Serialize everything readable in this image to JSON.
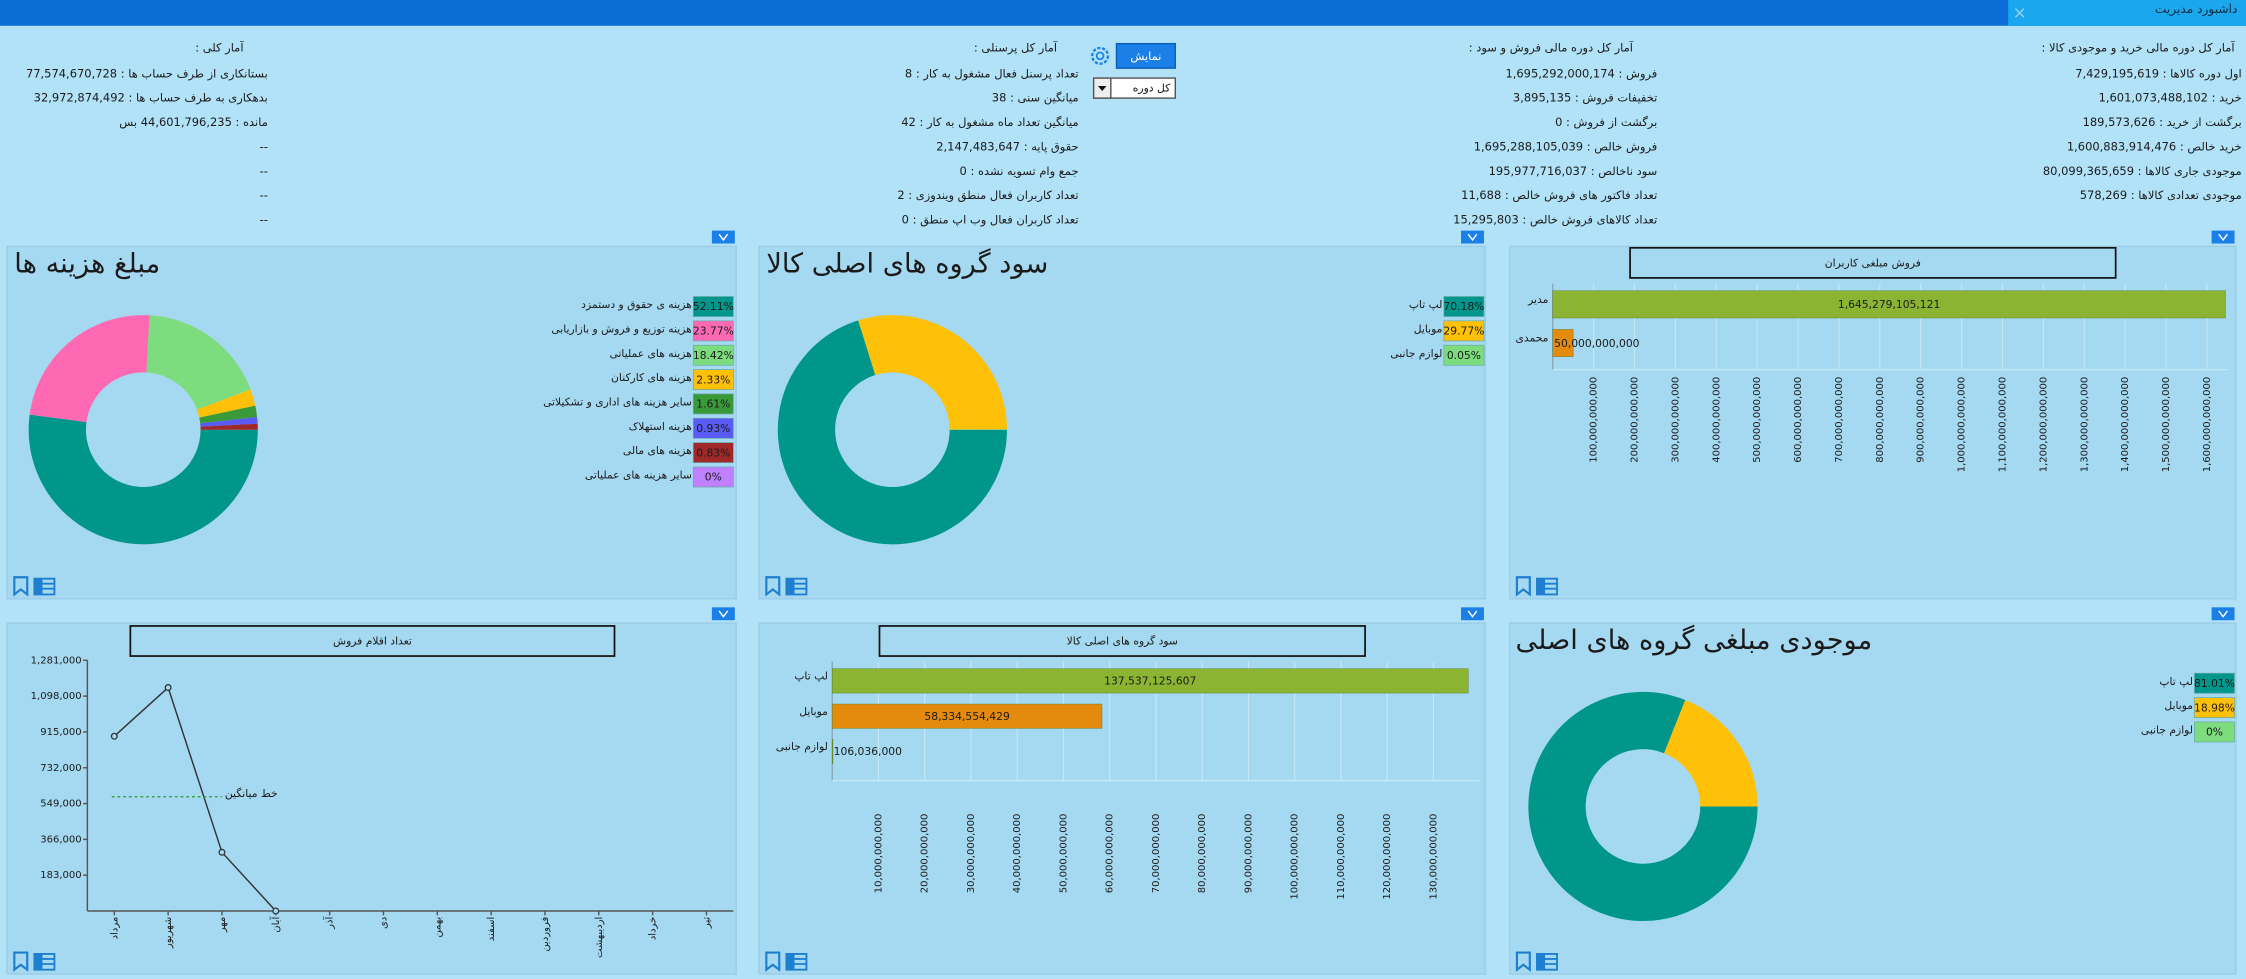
{
  "header": {
    "title": "داشبورد مدیریت"
  },
  "controls": {
    "show_button": "نمایش",
    "period": "کل دوره"
  },
  "stats": [
    {
      "title": "آمار کل دوره مالی خرید و موجودی کالا :",
      "items": [
        "اول دوره کالاها : 7,429,195,619",
        "خرید : 1,601,073,488,102",
        "برگشت از خرید : 189,573,626",
        "خرید خالص : 1,600,883,914,476",
        "موجودی جاری کالاها : 80,099,365,659",
        "موجودی تعدادی کالاها : 578,269"
      ]
    },
    {
      "title": "آمار کل دوره مالی فروش و سود :",
      "items": [
        "فروش : 1,695,292,000,174",
        "تخفیفات فروش : 3,895,135",
        "برگشت از فروش : 0",
        "فروش خالص : 1,695,288,105,039",
        "سود ناخالص : 195,977,716,037",
        "تعداد فاکتور های فروش خالص : 11,688",
        "تعداد کالاهای فروش خالص : 15,295,803"
      ]
    },
    {
      "title": "آمار کل پرسنلی :",
      "items": [
        "تعداد پرسنل فعال مشغول به کار : 8",
        "میانگین سنی : 38",
        "میانگین تعداد ماه مشغول به کار : 42",
        "حقوق پایه : 2,147,483,647",
        "جمع وام تسویه نشده : 0",
        "تعداد کاربران فعال منطق ویندوزی : 2",
        "تعداد کاربران فعال وب اپ منطق : 0"
      ]
    },
    {
      "title": "آمار کلی :",
      "items": [
        "بستانکاری از طرف حساب ها : 77,574,670,728",
        "بدهکاری به طرف حساب ها : 32,972,874,492",
        "مانده : 44,601,796,235 بس",
        "--",
        "--",
        "--",
        "--"
      ]
    }
  ],
  "chart_data": [
    {
      "type": "pie",
      "title": "مبلغ هزینه ها",
      "donut": true,
      "categories": [
        "هزینه ی حقوق و دستمزد",
        "هزینه توزیع و فروش و بازاریابی",
        "هزینه های عملیاتی",
        "هزینه های کارکنان",
        "سایر هزینه های اداری و تشکیلاتی",
        "هزینه استهلاک",
        "هزینه های مالی",
        "سایر هزینه های عملیاتی"
      ],
      "values": [
        52.11,
        23.77,
        18.42,
        2.33,
        1.61,
        0.93,
        0.83,
        0
      ],
      "value_labels": [
        "52.11%",
        "23.77%",
        "18.42%",
        "2.33%",
        "1.61%",
        "0.93%",
        "0.83%",
        "0%"
      ],
      "colors": [
        "#00968a",
        "#ff69b4",
        "#7ddc7d",
        "#ffc107",
        "#3a9a3a",
        "#5a5af5",
        "#a02828",
        "#c080ff"
      ]
    },
    {
      "type": "pie",
      "title": "سود گروه های اصلی کالا",
      "donut": true,
      "categories": [
        "لپ تاپ",
        "موبایل",
        "لوازم جانبی"
      ],
      "values": [
        70.18,
        29.77,
        0.05
      ],
      "value_labels": [
        "70.18%",
        "29.77%",
        "0.05%"
      ],
      "colors": [
        "#00968a",
        "#ffc107",
        "#7ddc7d"
      ]
    },
    {
      "type": "bar",
      "orientation": "horizontal",
      "title": "فروش مبلغی کاربران",
      "categories": [
        "مدیر",
        "محمدی"
      ],
      "values": [
        1645279105121,
        50000000000
      ],
      "value_labels": [
        "1,645,279,105,121",
        "50,000,000,000"
      ],
      "colors": [
        "#8ab431",
        "#e48a0c"
      ],
      "grid": true,
      "xlim": [
        0,
        1650000000000
      ],
      "xticks": [
        {
          "value": 100000000000,
          "label": "100,000,000,000"
        },
        {
          "value": 200000000000,
          "label": "200,000,000,000"
        },
        {
          "value": 300000000000,
          "label": "300,000,000,000"
        },
        {
          "value": 400000000000,
          "label": "400,000,000,000"
        },
        {
          "value": 500000000000,
          "label": "500,000,000,000"
        },
        {
          "value": 600000000000,
          "label": "600,000,000,000"
        },
        {
          "value": 700000000000,
          "label": "700,000,000,000"
        },
        {
          "value": 800000000000,
          "label": "800,000,000,000"
        },
        {
          "value": 900000000000,
          "label": "900,000,000,000"
        },
        {
          "value": 1000000000000,
          "label": "1,000,000,000,000"
        },
        {
          "value": 1100000000000,
          "label": "1,100,000,000,000"
        },
        {
          "value": 1200000000000,
          "label": "1,200,000,000,000"
        },
        {
          "value": 1300000000000,
          "label": "1,300,000,000,000"
        },
        {
          "value": 1400000000000,
          "label": "1,400,000,000,000"
        },
        {
          "value": 1500000000000,
          "label": "1,500,000,000,000"
        },
        {
          "value": 1600000000000,
          "label": "1,600,000,000,000"
        }
      ]
    },
    {
      "type": "line",
      "title": "تعداد اقلام فروش",
      "categories": [
        "مرداد",
        "شهریور",
        "مهر",
        "آبان",
        "آذر",
        "دی",
        "بهمن",
        "اسفند",
        "فروردین",
        "اردیبهشت",
        "خرداد",
        "تیر"
      ],
      "values": [
        893000,
        1142000,
        300000,
        0,
        null,
        null,
        null,
        null,
        null,
        null,
        null,
        null
      ],
      "color": "#333333",
      "ylim": [
        0,
        1281000
      ],
      "yticks": [
        {
          "value": 183000,
          "label": "183,000"
        },
        {
          "value": 366000,
          "label": "366,000"
        },
        {
          "value": 549000,
          "label": "549,000"
        },
        {
          "value": 732000,
          "label": "732,000"
        },
        {
          "value": 915000,
          "label": "915,000"
        },
        {
          "value": 1098000,
          "label": "1,098,000"
        },
        {
          "value": 1281000,
          "label": "1,281,000"
        }
      ],
      "average_line": {
        "label": "خط میانگین",
        "value": 584000,
        "color": "#2a9d2a"
      }
    },
    {
      "type": "bar",
      "orientation": "horizontal",
      "title": "سود گروه های اصلی کالا",
      "categories": [
        "لپ تاپ",
        "موبایل",
        "لوازم جانبی"
      ],
      "values": [
        137537125607,
        58334554429,
        106036000
      ],
      "value_labels": [
        "137,537,125,607",
        "58,334,554,429",
        "106,036,000"
      ],
      "colors": [
        "#8ab431",
        "#e48a0c",
        "#8ab431"
      ],
      "grid": true,
      "xlim": [
        0,
        140000000000
      ],
      "xticks": [
        {
          "value": 10000000000,
          "label": "10,000,000,000"
        },
        {
          "value": 20000000000,
          "label": "20,000,000,000"
        },
        {
          "value": 30000000000,
          "label": "30,000,000,000"
        },
        {
          "value": 40000000000,
          "label": "40,000,000,000"
        },
        {
          "value": 50000000000,
          "label": "50,000,000,000"
        },
        {
          "value": 60000000000,
          "label": "60,000,000,000"
        },
        {
          "value": 70000000000,
          "label": "70,000,000,000"
        },
        {
          "value": 80000000000,
          "label": "80,000,000,000"
        },
        {
          "value": 90000000000,
          "label": "90,000,000,000"
        },
        {
          "value": 100000000000,
          "label": "100,000,000,000"
        },
        {
          "value": 110000000000,
          "label": "110,000,000,000"
        },
        {
          "value": 120000000000,
          "label": "120,000,000,000"
        },
        {
          "value": 130000000000,
          "label": "130,000,000,000"
        }
      ]
    },
    {
      "type": "pie",
      "title": "موجودی مبلغی گروه های اصلی",
      "donut": true,
      "categories": [
        "لپ تاپ",
        "موبایل",
        "لوازم جانبی"
      ],
      "values": [
        81.01,
        18.98,
        0
      ],
      "value_labels": [
        "81.01%",
        "18.98%",
        "0%"
      ],
      "colors": [
        "#00968a",
        "#ffc107",
        "#7ddc7d"
      ]
    }
  ]
}
